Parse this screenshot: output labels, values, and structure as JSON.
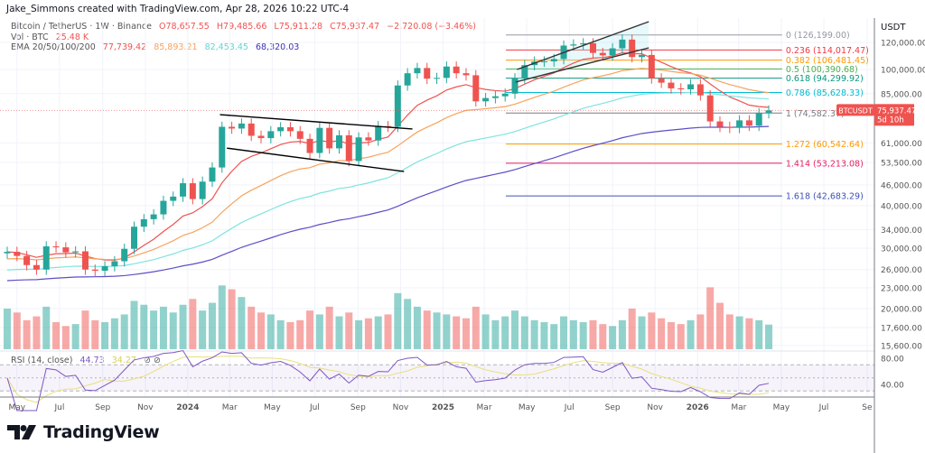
{
  "credit": "Jake_Simmons created with TradingView.com, Apr 28, 2026 10:22 UTC-4",
  "legend": {
    "symbol": "Bitcoin / TetherUS · 1W · Binance",
    "open": "O78,657.55",
    "high": "H79,485.66",
    "low": "L75,911.28",
    "close": "C75,937.47",
    "change": "−2,720.08 (−3.46%)",
    "vol_label": "Vol · BTC",
    "vol_value": "25.48 K",
    "ema_label": "EMA 20/50/100/200",
    "ema_values": [
      "77,739.42",
      "85,893.21",
      "82,453.45",
      "68,320.03"
    ],
    "rsi_label": "RSI (14, close)",
    "rsi_value": "44.73",
    "rsi_ma_value": "34.27"
  },
  "axis": {
    "currency": "USDT",
    "price_ticks": [
      120000,
      100000,
      85000,
      61000,
      53500,
      46000,
      40000,
      34000,
      30000,
      26000,
      23000,
      20000,
      17600,
      15600
    ],
    "rsi_ticks": [
      80,
      40
    ],
    "time_ticks": [
      {
        "label": "May",
        "date": "2023-05-01"
      },
      {
        "label": "Jul",
        "date": "2023-07-01"
      },
      {
        "label": "Sep",
        "date": "2023-09-01"
      },
      {
        "label": "Nov",
        "date": "2023-11-01"
      },
      {
        "label": "2024",
        "date": "2024-01-01"
      },
      {
        "label": "Mar",
        "date": "2024-03-01"
      },
      {
        "label": "May",
        "date": "2024-05-01"
      },
      {
        "label": "Jul",
        "date": "2024-07-01"
      },
      {
        "label": "Sep",
        "date": "2024-09-01"
      },
      {
        "label": "Nov",
        "date": "2024-11-01"
      },
      {
        "label": "2025",
        "date": "2025-01-01"
      },
      {
        "label": "Mar",
        "date": "2025-03-01"
      },
      {
        "label": "May",
        "date": "2025-05-01"
      },
      {
        "label": "Jul",
        "date": "2025-07-01"
      },
      {
        "label": "Sep",
        "date": "2025-09-01"
      },
      {
        "label": "Nov",
        "date": "2025-11-01"
      },
      {
        "label": "2026",
        "date": "2026-01-01"
      },
      {
        "label": "Mar",
        "date": "2026-03-01"
      },
      {
        "label": "May",
        "date": "2026-05-01"
      },
      {
        "label": "Jul",
        "date": "2026-07-01"
      },
      {
        "label": "Se",
        "date": "2026-09-01"
      }
    ]
  },
  "price_tag": {
    "symbol": "BTCUSDT",
    "price": "75,937.47",
    "countdown": "5d 10h",
    "value": 75937.47
  },
  "colors": {
    "up": "#26a69a",
    "down": "#ef5350",
    "ema20": "#ef5350",
    "ema50": "#f7a35c",
    "ema100": "#7fe3df",
    "ema200": "#5b4fc7",
    "rsi": "#7e57c2",
    "rsi_ma": "#e8e07a"
  },
  "chart_data": {
    "type": "candlestick",
    "scale": "log",
    "ylim": [
      15600,
      126199
    ],
    "start_date": "2023-04-17",
    "interval_days": 14,
    "closes": [
      29300,
      28500,
      26800,
      26000,
      30400,
      30200,
      29200,
      29400,
      26000,
      25800,
      26600,
      27500,
      29900,
      34700,
      36500,
      37700,
      41300,
      42500,
      46500,
      41800,
      47000,
      51700,
      68000,
      67200,
      69500,
      64000,
      63000,
      66000,
      67800,
      66000,
      62700,
      57000,
      67500,
      58800,
      64200,
      54000,
      63300,
      62000,
      68300,
      68000,
      89800,
      97500,
      101000,
      94000,
      94500,
      102000,
      97500,
      96200,
      80700,
      82500,
      83500,
      85000,
      94300,
      103000,
      105500,
      105600,
      107300,
      117500,
      118400,
      119300,
      111800,
      110000,
      115300,
      122300,
      108700,
      110300,
      94200,
      91500,
      88100,
      87500,
      90500,
      84000,
      70500,
      68000,
      67500,
      71000,
      68500,
      74500,
      75937.47
    ],
    "volume_k": [
      42,
      38,
      30,
      34,
      44,
      28,
      24,
      26,
      40,
      30,
      28,
      32,
      36,
      50,
      46,
      40,
      44,
      38,
      46,
      52,
      40,
      48,
      66,
      62,
      54,
      44,
      38,
      36,
      30,
      28,
      30,
      40,
      36,
      44,
      34,
      38,
      30,
      32,
      34,
      36,
      58,
      52,
      44,
      40,
      38,
      36,
      34,
      32,
      44,
      36,
      30,
      34,
      40,
      34,
      30,
      28,
      26,
      34,
      30,
      28,
      30,
      26,
      24,
      30,
      42,
      34,
      38,
      32,
      28,
      26,
      30,
      36,
      64,
      48,
      36,
      34,
      32,
      30,
      25.48
    ],
    "fib_levels": [
      {
        "ratio": "0",
        "price": 126199.0,
        "label": "0 (126,199.00)",
        "color": "#9598a1"
      },
      {
        "ratio": "0.236",
        "price": 114017.47,
        "label": "0.236 (114,017.47)",
        "color": "#f23645"
      },
      {
        "ratio": "0.382",
        "price": 106481.45,
        "label": "0.382 (106,481.45)",
        "color": "#ff9800"
      },
      {
        "ratio": "0.5",
        "price": 100390.68,
        "label": "0.5 (100,390.68)",
        "color": "#4caf50"
      },
      {
        "ratio": "0.618",
        "price": 94299.92,
        "label": "0.618 (94,299.92)",
        "color": "#089981"
      },
      {
        "ratio": "0.786",
        "price": 85628.33,
        "label": "0.786 (85,628.33)",
        "color": "#00bcd4"
      },
      {
        "ratio": "1",
        "price": 74582.37,
        "label": "1 (74,582.37)",
        "color": "#787b86"
      },
      {
        "ratio": "1.272",
        "price": 60542.64,
        "label": "1.272 (60,542.64)",
        "color": "#ff9800"
      },
      {
        "ratio": "1.414",
        "price": 53213.08,
        "label": "1.414 (53,213.08)",
        "color": "#e91e63"
      },
      {
        "ratio": "1.618",
        "price": 42683.29,
        "label": "1.618 (42,683.29)",
        "color": "#3f51b5"
      }
    ],
    "fib_range": [
      "2025-04-01",
      "2026-04-27"
    ],
    "trendlines": [
      {
        "from": [
          "2024-02-16",
          73800
        ],
        "to": [
          "2024-11-18",
          67000
        ],
        "color": "#000000"
      },
      {
        "from": [
          "2024-02-26",
          58900
        ],
        "to": [
          "2024-11-06",
          50300
        ],
        "color": "#000000"
      },
      {
        "from": [
          "2025-04-17",
          100000
        ],
        "to": [
          "2025-10-23",
          138000
        ],
        "color": "#333333"
      },
      {
        "from": [
          "2025-04-15",
          91900
        ],
        "to": [
          "2025-10-23",
          115700
        ],
        "color": "#333333"
      }
    ]
  },
  "logo": "TradingView"
}
